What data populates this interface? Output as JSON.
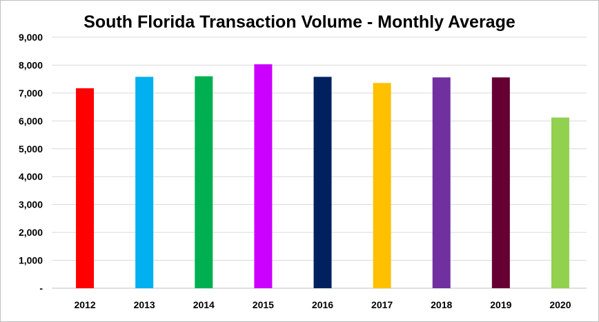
{
  "chart_data": {
    "type": "bar",
    "title": "South Florida Transaction Volume - Monthly Average",
    "xlabel": "",
    "ylabel": "",
    "categories": [
      "2012",
      "2013",
      "2014",
      "2015",
      "2016",
      "2017",
      "2018",
      "2019",
      "2020"
    ],
    "values": [
      7170,
      7580,
      7600,
      8030,
      7580,
      7360,
      7560,
      7560,
      6120
    ],
    "colors": [
      "#ff0000",
      "#00b0f0",
      "#00b050",
      "#cc00ff",
      "#002060",
      "#ffc000",
      "#7030a0",
      "#660033",
      "#92d050"
    ],
    "ylim": [
      0,
      9000
    ],
    "yticks": [
      0,
      1000,
      2000,
      3000,
      4000,
      5000,
      6000,
      7000,
      8000,
      9000
    ],
    "ytick_labels": [
      "-",
      "1,000",
      "2,000",
      "3,000",
      "4,000",
      "5,000",
      "6,000",
      "7,000",
      "8,000",
      "9,000"
    ],
    "grid": true,
    "legend": "none"
  }
}
